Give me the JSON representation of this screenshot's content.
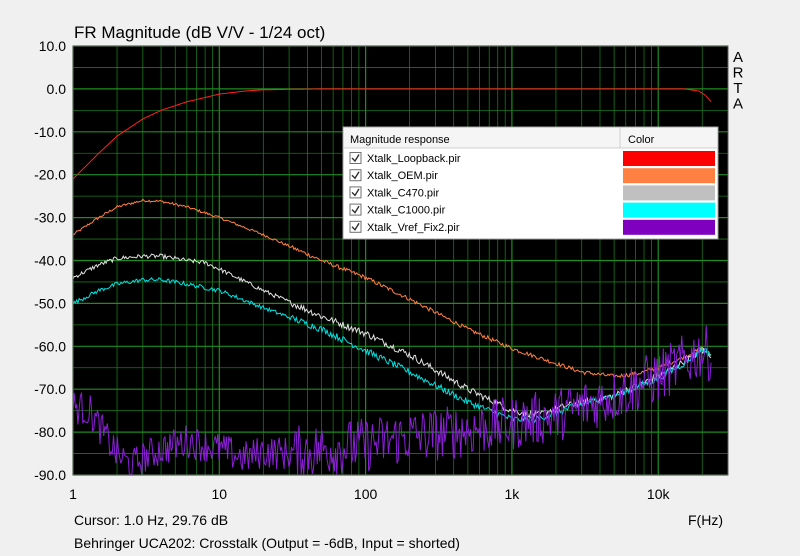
{
  "window": {
    "title": "FR Magnitude (dB V/V - 1/24 oct)",
    "brand": "ARTA",
    "cursor_readout": "Cursor: 1.0 Hz, 29.76 dB",
    "x_unit": "F(Hz)",
    "caption": "Behringer UCA202: Crosstalk (Output = -6dB, Input = shorted)"
  },
  "legend": {
    "header_name": "Magnitude response",
    "header_color": "Color",
    "items": [
      {
        "label": "Xtalk_Loopback.pir",
        "color": "#ff0000",
        "checked": true
      },
      {
        "label": "Xtalk_OEM.pir",
        "color": "#ff8040",
        "checked": true
      },
      {
        "label": "Xtalk_C470.pir",
        "color": "#c0c0c0",
        "checked": true
      },
      {
        "label": "Xtalk_C1000.pir",
        "color": "#00ffff",
        "checked": true
      },
      {
        "label": "Xtalk_Vref_Fix2.pir",
        "color": "#8000c0",
        "checked": true
      }
    ]
  },
  "chart_data": {
    "type": "line",
    "title": "FR Magnitude (dB V/V - 1/24 oct)",
    "xlabel": "F(Hz)",
    "ylabel": "",
    "xscale": "log",
    "xlim": [
      1,
      30000
    ],
    "ylim": [
      -90,
      10
    ],
    "x_ticks": [
      {
        "v": 1,
        "label": "1"
      },
      {
        "v": 10,
        "label": "10"
      },
      {
        "v": 100,
        "label": "100"
      },
      {
        "v": 1000,
        "label": "1k"
      },
      {
        "v": 10000,
        "label": "10k"
      }
    ],
    "y_ticks": [
      {
        "v": 10,
        "label": "10.0"
      },
      {
        "v": 0,
        "label": "0.0"
      },
      {
        "v": -10,
        "label": "-10.0"
      },
      {
        "v": -20,
        "label": "-20.0"
      },
      {
        "v": -30,
        "label": "-30.0"
      },
      {
        "v": -40,
        "label": "-40.0"
      },
      {
        "v": -50,
        "label": "-50.0"
      },
      {
        "v": -60,
        "label": "-60.0"
      },
      {
        "v": -70,
        "label": "-70.0"
      },
      {
        "v": -80,
        "label": "-80.0"
      },
      {
        "v": -90,
        "label": "-90.0"
      }
    ],
    "background": "#000000",
    "grid_color": "#1e8c1e",
    "grid": true,
    "legend_position": "upper-right",
    "series": [
      {
        "name": "Xtalk_Loopback.pir",
        "color": "#ff2020",
        "noise": 0,
        "points": [
          [
            1,
            -21
          ],
          [
            1.5,
            -15
          ],
          [
            2,
            -11
          ],
          [
            3,
            -7
          ],
          [
            4,
            -5
          ],
          [
            6,
            -3
          ],
          [
            8,
            -2
          ],
          [
            10,
            -1.2
          ],
          [
            15,
            -0.5
          ],
          [
            20,
            -0.2
          ],
          [
            50,
            0
          ],
          [
            1000,
            0
          ],
          [
            10000,
            0
          ],
          [
            15000,
            0
          ],
          [
            19000,
            -0.5
          ],
          [
            21000,
            -1.5
          ],
          [
            23000,
            -3
          ]
        ]
      },
      {
        "name": "Xtalk_OEM.pir",
        "color": "#ff8040",
        "noise": 0.3,
        "points": [
          [
            1,
            -34
          ],
          [
            1.5,
            -30
          ],
          [
            2,
            -27.5
          ],
          [
            3,
            -26
          ],
          [
            4,
            -26.2
          ],
          [
            6,
            -27.5
          ],
          [
            10,
            -30
          ],
          [
            20,
            -34
          ],
          [
            50,
            -40
          ],
          [
            100,
            -44
          ],
          [
            200,
            -49
          ],
          [
            500,
            -56
          ],
          [
            1000,
            -60.5
          ],
          [
            2000,
            -64
          ],
          [
            3000,
            -66
          ],
          [
            5000,
            -67
          ],
          [
            7000,
            -66.5
          ],
          [
            10000,
            -65
          ],
          [
            15000,
            -62.5
          ],
          [
            20000,
            -60.5
          ],
          [
            23000,
            -62
          ]
        ]
      },
      {
        "name": "Xtalk_C470.pir",
        "color": "#e0e0e0",
        "noise": 0.5,
        "points": [
          [
            1,
            -44
          ],
          [
            1.5,
            -41
          ],
          [
            2,
            -39.5
          ],
          [
            3,
            -39
          ],
          [
            4,
            -39
          ],
          [
            6,
            -40
          ],
          [
            8,
            -40.5
          ],
          [
            10,
            -42
          ],
          [
            20,
            -47
          ],
          [
            50,
            -53
          ],
          [
            100,
            -57
          ],
          [
            200,
            -62
          ],
          [
            500,
            -70
          ],
          [
            1000,
            -75
          ],
          [
            1500,
            -76
          ],
          [
            2000,
            -74.5
          ],
          [
            3000,
            -73
          ],
          [
            5000,
            -71.5
          ],
          [
            10000,
            -67
          ],
          [
            15000,
            -63.5
          ],
          [
            20000,
            -61
          ],
          [
            23000,
            -62
          ]
        ]
      },
      {
        "name": "Xtalk_C1000.pir",
        "color": "#00e0e0",
        "noise": 0.5,
        "points": [
          [
            1,
            -50
          ],
          [
            1.5,
            -47
          ],
          [
            2,
            -45.5
          ],
          [
            3,
            -44.5
          ],
          [
            4,
            -44.5
          ],
          [
            6,
            -45.5
          ],
          [
            10,
            -47
          ],
          [
            20,
            -51
          ],
          [
            50,
            -56
          ],
          [
            100,
            -61
          ],
          [
            200,
            -66
          ],
          [
            500,
            -73
          ],
          [
            1000,
            -77
          ],
          [
            1500,
            -77
          ],
          [
            2000,
            -75.5
          ],
          [
            3000,
            -73.5
          ],
          [
            5000,
            -71.5
          ],
          [
            10000,
            -67.5
          ],
          [
            15000,
            -64
          ],
          [
            20000,
            -60.5
          ],
          [
            23000,
            -62
          ]
        ]
      },
      {
        "name": "Xtalk_Vref_Fix2.pir",
        "color": "#8a1fd6",
        "noise": 4,
        "points": [
          [
            1,
            -74
          ],
          [
            1.3,
            -75
          ],
          [
            1.6,
            -80
          ],
          [
            2,
            -85
          ],
          [
            2.5,
            -88
          ],
          [
            3,
            -86
          ],
          [
            4,
            -84
          ],
          [
            5,
            -83
          ],
          [
            6,
            -82
          ],
          [
            8,
            -83
          ],
          [
            10,
            -84
          ],
          [
            15,
            -86
          ],
          [
            20,
            -84.5
          ],
          [
            30,
            -85
          ],
          [
            50,
            -84
          ],
          [
            100,
            -83
          ],
          [
            200,
            -81
          ],
          [
            300,
            -80.5
          ],
          [
            500,
            -79.5
          ],
          [
            1000,
            -78
          ],
          [
            2000,
            -76
          ],
          [
            3000,
            -74
          ],
          [
            5000,
            -71.5
          ],
          [
            10000,
            -67
          ],
          [
            15000,
            -63.5
          ],
          [
            20000,
            -61
          ],
          [
            23000,
            -62
          ]
        ]
      }
    ]
  }
}
